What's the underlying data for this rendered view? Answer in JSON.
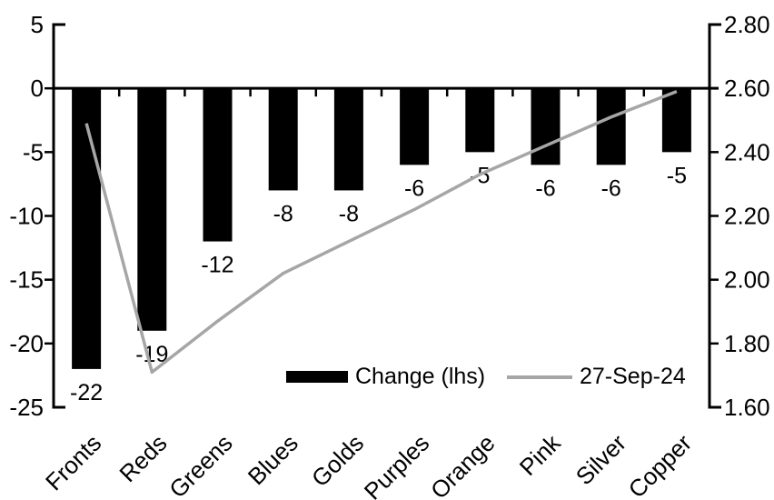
{
  "chart_data": {
    "type": "bar",
    "combo": "bar+line dual axis",
    "title": "",
    "categories": [
      "Fronts",
      "Reds",
      "Greens",
      "Blues",
      "Golds",
      "Purples",
      "Orange",
      "Pink",
      "Silver",
      "Copper"
    ],
    "series": [
      {
        "name": "Change (lhs)",
        "type": "bar",
        "axis": "left",
        "values": [
          -22,
          -19,
          -12,
          -8,
          -8,
          -6,
          -5,
          -6,
          -6,
          -5
        ],
        "data_labels": [
          "-22",
          "-19",
          "-12",
          "-8",
          "-8",
          "-6",
          "-5",
          "-6",
          "-6",
          "-5"
        ]
      },
      {
        "name": "27-Sep-24",
        "type": "line",
        "axis": "right",
        "values": [
          2.49,
          1.71,
          1.87,
          2.02,
          2.12,
          2.22,
          2.33,
          2.42,
          2.51,
          2.59
        ]
      }
    ],
    "left_axis": {
      "min": -25,
      "max": 5,
      "ticks": [
        "5",
        "0",
        "-5",
        "-10",
        "-15",
        "-20",
        "-25"
      ]
    },
    "right_axis": {
      "min": 1.6,
      "max": 2.8,
      "ticks": [
        "2.80",
        "2.60",
        "2.40",
        "2.20",
        "2.00",
        "1.80",
        "1.60"
      ]
    },
    "legend": {
      "position": "bottom-inside",
      "items": [
        {
          "label": "Change (lhs)",
          "marker": "bar"
        },
        {
          "label": "27-Sep-24",
          "marker": "line"
        }
      ]
    },
    "grid": false,
    "xlabel": "",
    "ylabel_left": "",
    "ylabel_right": ""
  },
  "colors": {
    "bar": "#000000",
    "line": "#a6a6a6",
    "axis": "#000000",
    "text": "#000000",
    "background": "#ffffff"
  }
}
